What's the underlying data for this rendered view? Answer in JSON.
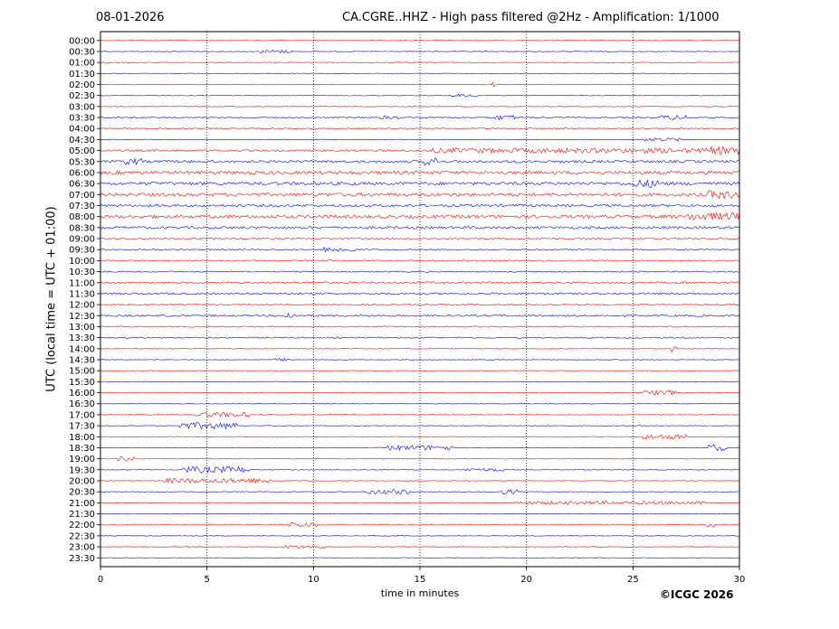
{
  "header": {
    "date": "08-01-2026",
    "title": "CA.CGRE..HHZ - High pass filtered @2Hz - Amplification: 1/1000"
  },
  "footer": {
    "copyright": "©ICGC 2026"
  },
  "colors": {
    "red_trace": "#ff0000",
    "blue_trace": "#0000ff",
    "grid": "#000000"
  },
  "chart_data": {
    "type": "line",
    "xlabel": "time in minutes",
    "ylabel": "UTC (local time = UTC + 01:00)",
    "xlim": [
      0,
      30
    ],
    "x_ticks": [
      0,
      5,
      10,
      15,
      20,
      25,
      30
    ],
    "vertical_grid": "dotted at 5, 10, 15, 20, 25 minutes",
    "row_labels": [
      "00:00",
      "00:30",
      "01:00",
      "01:30",
      "02:00",
      "02:30",
      "03:00",
      "03:30",
      "04:00",
      "04:30",
      "05:00",
      "05:30",
      "06:00",
      "06:30",
      "07:00",
      "07:30",
      "08:00",
      "08:30",
      "09:00",
      "09:30",
      "10:00",
      "10:30",
      "11:00",
      "11:30",
      "12:00",
      "12:30",
      "13:00",
      "13:30",
      "14:00",
      "14:30",
      "15:00",
      "15:30",
      "16:00",
      "16:30",
      "17:00",
      "17:30",
      "18:00",
      "18:30",
      "19:00",
      "19:30",
      "20:00",
      "20:30",
      "21:00",
      "21:30",
      "22:00",
      "22:30",
      "23:00",
      "23:30"
    ],
    "trace_colors_alternate": [
      "red",
      "blue"
    ],
    "noise_level_per_row": [
      1,
      1,
      1,
      1,
      1,
      1,
      1,
      2,
      2,
      1,
      3,
      4,
      5,
      5,
      5,
      4,
      5,
      4,
      2,
      2,
      2,
      2,
      3,
      3,
      2,
      3,
      2,
      2,
      1,
      1,
      1,
      1,
      1,
      1,
      1,
      1,
      1,
      1,
      1,
      1,
      1,
      1,
      1,
      1,
      1,
      1,
      1,
      1
    ],
    "events": [
      {
        "row": "00:30",
        "start": 7.5,
        "end": 9.0,
        "amplitude": 2
      },
      {
        "row": "01:00",
        "start": 0,
        "end": 0.4,
        "amplitude": 2
      },
      {
        "row": "02:00",
        "start": 18.3,
        "end": 18.7,
        "amplitude": 3
      },
      {
        "row": "02:30",
        "start": 16.5,
        "end": 17.8,
        "amplitude": 2
      },
      {
        "row": "03:30",
        "start": 13.0,
        "end": 14.0,
        "amplitude": 2
      },
      {
        "row": "03:30",
        "start": 18.5,
        "end": 19.5,
        "amplitude": 3
      },
      {
        "row": "03:30",
        "start": 26.3,
        "end": 27.5,
        "amplitude": 3
      },
      {
        "row": "04:30",
        "start": 25.5,
        "end": 27.5,
        "amplitude": 2
      },
      {
        "row": "05:00",
        "start": 15.5,
        "end": 30,
        "amplitude": 3
      },
      {
        "row": "05:00",
        "start": 28.5,
        "end": 30,
        "amplitude": 5
      },
      {
        "row": "05:30",
        "start": 1.0,
        "end": 2.0,
        "amplitude": 4
      },
      {
        "row": "05:30",
        "start": 15.2,
        "end": 15.8,
        "amplitude": 5
      },
      {
        "row": "06:30",
        "start": 25.0,
        "end": 26.5,
        "amplitude": 5
      },
      {
        "row": "07:00",
        "start": 28.5,
        "end": 30,
        "amplitude": 5
      },
      {
        "row": "08:00",
        "start": 27.5,
        "end": 30,
        "amplitude": 5
      },
      {
        "row": "09:30",
        "start": 10.5,
        "end": 12.0,
        "amplitude": 3
      },
      {
        "row": "12:30",
        "start": 8.5,
        "end": 9.2,
        "amplitude": 4
      },
      {
        "row": "14:00",
        "start": 26.8,
        "end": 27.0,
        "amplitude": 4
      },
      {
        "row": "14:30",
        "start": 8.2,
        "end": 9.0,
        "amplitude": 2
      },
      {
        "row": "16:00",
        "start": 25.5,
        "end": 27.0,
        "amplitude": 3
      },
      {
        "row": "17:00",
        "start": 4.5,
        "end": 7.0,
        "amplitude": 3
      },
      {
        "row": "17:30",
        "start": 3.7,
        "end": 6.5,
        "amplitude": 4
      },
      {
        "row": "18:00",
        "start": 25.5,
        "end": 27.5,
        "amplitude": 3
      },
      {
        "row": "18:30",
        "start": 13.5,
        "end": 16.5,
        "amplitude": 3
      },
      {
        "row": "18:30",
        "start": 28.5,
        "end": 29.5,
        "amplitude": 4
      },
      {
        "row": "19:00",
        "start": 0.8,
        "end": 1.6,
        "amplitude": 3
      },
      {
        "row": "19:30",
        "start": 3.8,
        "end": 7.0,
        "amplitude": 4
      },
      {
        "row": "19:30",
        "start": 17.0,
        "end": 19.0,
        "amplitude": 2
      },
      {
        "row": "20:00",
        "start": 3.0,
        "end": 8.0,
        "amplitude": 3
      },
      {
        "row": "20:30",
        "start": 12.5,
        "end": 14.5,
        "amplitude": 3
      },
      {
        "row": "20:30",
        "start": 18.8,
        "end": 19.6,
        "amplitude": 3
      },
      {
        "row": "21:00",
        "start": 19.5,
        "end": 28.5,
        "amplitude": 2
      },
      {
        "row": "22:00",
        "start": 8.8,
        "end": 10.2,
        "amplitude": 3
      },
      {
        "row": "22:00",
        "start": 28.4,
        "end": 28.8,
        "amplitude": 3
      },
      {
        "row": "23:00",
        "start": 8.5,
        "end": 10.5,
        "amplitude": 2
      }
    ]
  }
}
